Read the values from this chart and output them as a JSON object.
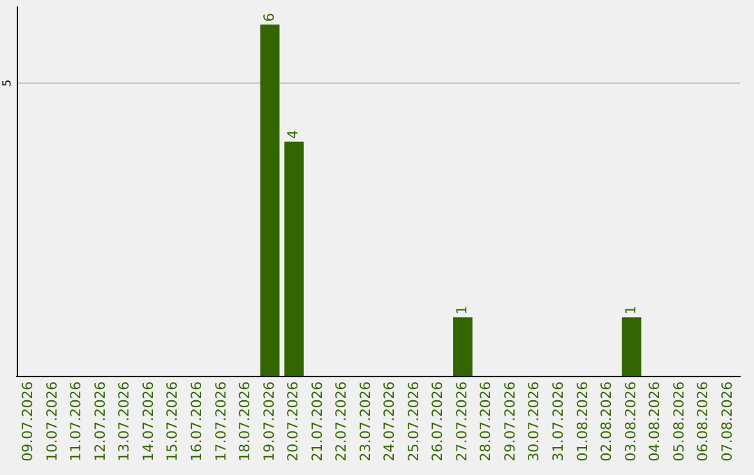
{
  "chart_data": {
    "type": "bar",
    "categories": [
      "09.07.2026",
      "10.07.2026",
      "11.07.2026",
      "12.07.2026",
      "13.07.2026",
      "14.07.2026",
      "15.07.2026",
      "16.07.2026",
      "17.07.2026",
      "18.07.2026",
      "19.07.2026",
      "20.07.2026",
      "21.07.2026",
      "22.07.2026",
      "23.07.2026",
      "24.07.2026",
      "25.07.2026",
      "26.07.2026",
      "27.07.2026",
      "28.07.2026",
      "29.07.2026",
      "30.07.2026",
      "31.07.2026",
      "01.08.2026",
      "02.08.2026",
      "03.08.2026",
      "04.08.2026",
      "05.08.2026",
      "06.08.2026",
      "07.08.2026"
    ],
    "values": [
      0,
      0,
      0,
      0,
      0,
      0,
      0,
      0,
      0,
      0,
      6,
      4,
      0,
      0,
      0,
      0,
      0,
      0,
      1,
      0,
      0,
      0,
      0,
      0,
      0,
      1,
      0,
      0,
      0,
      0
    ],
    "value_labels": [
      null,
      null,
      null,
      null,
      null,
      null,
      null,
      null,
      null,
      null,
      "6",
      "4",
      null,
      null,
      null,
      null,
      null,
      null,
      "1",
      null,
      null,
      null,
      null,
      null,
      null,
      "1",
      null,
      null,
      null,
      null
    ],
    "color": "#336600",
    "ylim": [
      0,
      6.3
    ],
    "yticks": [
      5
    ],
    "grid": "y"
  }
}
